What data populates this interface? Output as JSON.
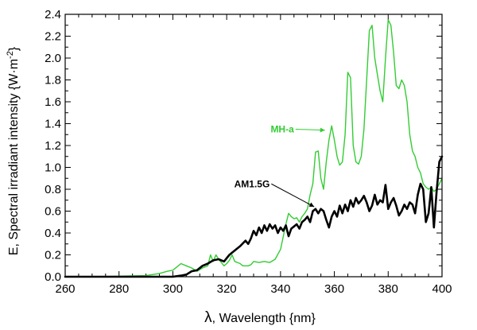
{
  "chart_data": {
    "type": "line",
    "xlabel_symbol": "λ",
    "xlabel": ", Wavelength {nm}",
    "ylabel_main": "E, Spectral irradiant intensity {W·m",
    "ylabel_exp": "-2",
    "ylabel_close": "}",
    "xlim": [
      260,
      400
    ],
    "ylim": [
      0,
      2.4
    ],
    "xticks": [
      260,
      280,
      300,
      320,
      340,
      360,
      380,
      400
    ],
    "yticks": [
      "0.0",
      "0.2",
      "0.4",
      "0.6",
      "0.8",
      "1.0",
      "1.2",
      "1.4",
      "1.6",
      "1.8",
      "2.0",
      "2.2",
      "2.4"
    ],
    "series": [
      {
        "name": "AM1.5G",
        "color": "#000000",
        "annotation": {
          "text": "AM1.5G",
          "label_at": [
            336,
            0.82
          ],
          "arrow_to": [
            352.5,
            0.64
          ]
        },
        "x": [
          260,
          300,
          303,
          305,
          307,
          309,
          311,
          313,
          315,
          317,
          319,
          321,
          323,
          325,
          327,
          328,
          329,
          330,
          331,
          332,
          333,
          334,
          335,
          336,
          337,
          338,
          339,
          340,
          341,
          342,
          343,
          344,
          345,
          346,
          347,
          348,
          349,
          350,
          351,
          352,
          353,
          354,
          355,
          356,
          357,
          358,
          359,
          360,
          361,
          362,
          363,
          364,
          365,
          366,
          367,
          368,
          369,
          370,
          371,
          372,
          373,
          374,
          375,
          376,
          377,
          378,
          379,
          380,
          381,
          382,
          383,
          384,
          385,
          386,
          387,
          388,
          389,
          390,
          391,
          392,
          393,
          394,
          395,
          396,
          397,
          398,
          399,
          400
        ],
        "y": [
          0.0,
          0.0,
          0.01,
          0.02,
          0.05,
          0.06,
          0.1,
          0.12,
          0.15,
          0.16,
          0.14,
          0.2,
          0.24,
          0.28,
          0.33,
          0.3,
          0.35,
          0.42,
          0.38,
          0.45,
          0.4,
          0.47,
          0.42,
          0.48,
          0.44,
          0.47,
          0.4,
          0.45,
          0.42,
          0.47,
          0.37,
          0.44,
          0.46,
          0.48,
          0.44,
          0.5,
          0.52,
          0.55,
          0.5,
          0.6,
          0.62,
          0.58,
          0.62,
          0.6,
          0.52,
          0.45,
          0.55,
          0.6,
          0.55,
          0.65,
          0.58,
          0.66,
          0.6,
          0.7,
          0.64,
          0.72,
          0.67,
          0.7,
          0.74,
          0.68,
          0.6,
          0.65,
          0.75,
          0.66,
          0.7,
          0.68,
          0.84,
          0.62,
          0.68,
          0.72,
          0.65,
          0.56,
          0.6,
          0.66,
          0.62,
          0.68,
          0.66,
          0.58,
          0.75,
          0.85,
          0.8,
          0.5,
          0.58,
          0.82,
          0.45,
          0.78,
          1.05,
          1.1
        ]
      },
      {
        "name": "MH-a",
        "color": "#33cc33",
        "annotation": {
          "text": "MH-a",
          "label_at": [
            345,
            1.32
          ],
          "arrow_to": [
            356.5,
            1.34
          ]
        },
        "x": [
          260,
          270,
          290,
          295,
          298,
          300,
          302,
          303,
          305,
          307,
          309,
          311,
          313,
          314,
          315,
          316,
          317,
          318,
          319,
          320,
          321,
          322,
          323,
          324,
          325,
          326,
          327,
          328,
          329,
          330,
          332,
          334,
          336,
          338,
          340,
          342,
          343,
          344,
          345,
          346,
          347,
          348,
          349,
          350,
          351,
          352,
          353,
          354,
          355,
          356,
          357,
          358,
          359,
          360,
          361,
          362,
          363,
          364,
          365,
          366,
          367,
          368,
          369,
          370,
          371,
          372,
          373,
          374,
          375,
          376,
          377,
          378,
          379,
          380,
          381,
          382,
          383,
          384,
          385,
          386,
          387,
          388,
          389,
          390,
          391,
          392,
          393,
          394,
          395,
          396,
          397,
          398,
          399,
          400
        ],
        "y": [
          0.0,
          0.0,
          0.01,
          0.03,
          0.05,
          0.06,
          0.1,
          0.12,
          0.1,
          0.08,
          0.05,
          0.08,
          0.1,
          0.2,
          0.14,
          0.2,
          0.16,
          0.13,
          0.1,
          0.12,
          0.15,
          0.2,
          0.14,
          0.13,
          0.12,
          0.1,
          0.1,
          0.1,
          0.11,
          0.14,
          0.13,
          0.14,
          0.13,
          0.16,
          0.25,
          0.48,
          0.58,
          0.55,
          0.53,
          0.54,
          0.5,
          0.55,
          0.58,
          0.62,
          0.75,
          0.85,
          1.14,
          1.15,
          0.9,
          0.8,
          1.05,
          1.25,
          1.38,
          1.25,
          1.1,
          1.02,
          1.05,
          1.3,
          1.87,
          1.82,
          1.2,
          1.05,
          1.03,
          1.1,
          1.35,
          1.8,
          2.25,
          2.3,
          2.0,
          1.85,
          1.7,
          1.6,
          2.0,
          2.35,
          2.3,
          2.05,
          1.75,
          1.72,
          1.8,
          1.75,
          1.6,
          1.3,
          1.15,
          1.1,
          1.0,
          0.95,
          0.85,
          0.82,
          0.8,
          0.82,
          0.78,
          0.8,
          0.85,
          0.9
        ]
      }
    ]
  }
}
